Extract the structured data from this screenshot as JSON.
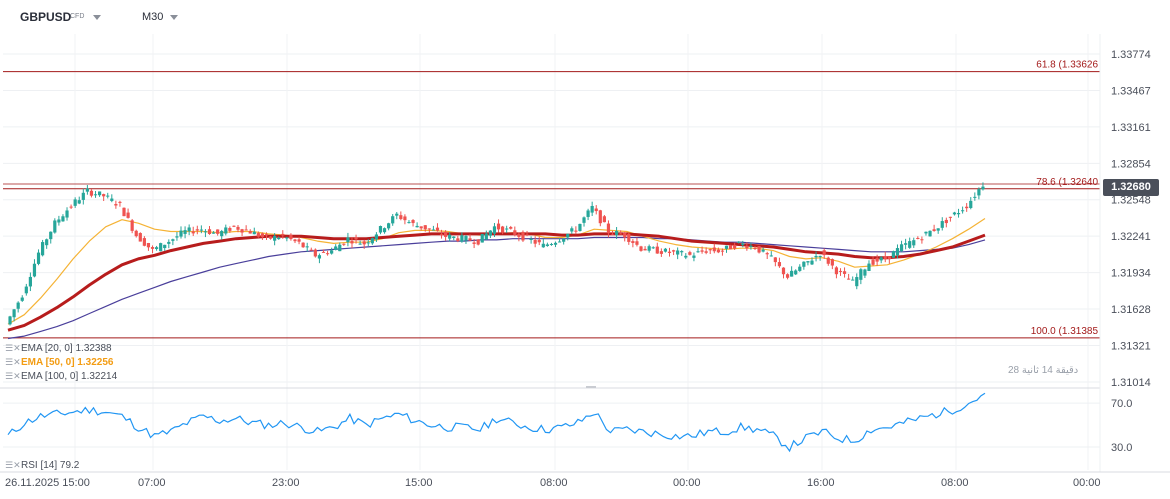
{
  "toolbar": {
    "symbol": "GBPUSD",
    "instrument_type": "CFD",
    "timeframe": "M30"
  },
  "colors": {
    "up_candle": "#26a69a",
    "down_candle": "#ef5350",
    "ema20": "#f5b335",
    "ema50": "#b71c1c",
    "ema100": "#4a3f9b",
    "fib_line": "#a31a1a",
    "rsi_line": "#2196f3",
    "badge": "#4a4f5a"
  },
  "legend": {
    "ema20": "EMA [20, 0]  1.32388",
    "ema50": "EMA [50, 0]  1.32256",
    "ema100": "EMA [100, 0]  1.32214",
    "rsi": "RSI [14]  79.2"
  },
  "countdown": {
    "minutes": "28",
    "mid": "14",
    "text": "دقيقة 14 ثانية 28"
  },
  "current_price": "1.32680",
  "fib_labels": {
    "f618": "61.8 (1.33626",
    "f786": "78.6 (1.32640",
    "f100": "100.0 (1.31385"
  },
  "chart_data": {
    "type": "candlestick",
    "symbol": "GBPUSD",
    "timeframe": "M30",
    "y_ticks": [
      "1.33774",
      "1.33467",
      "1.33161",
      "1.32854",
      "1.32548",
      "1.32241",
      "1.31934",
      "1.31628",
      "1.31321",
      "1.31014"
    ],
    "ylim": [
      1.31014,
      1.33774
    ],
    "x_ticks": [
      "26.11.2025  15:00",
      "07:00",
      "23:00",
      "15:00",
      "08:00",
      "00:00",
      "16:00",
      "08:00",
      "00:00"
    ],
    "fib_levels": [
      {
        "label": "61.8",
        "value": 1.33626
      },
      {
        "label": "78.6",
        "value": 1.3264
      },
      {
        "label": "100.0",
        "value": 1.31385
      }
    ],
    "last_price": 1.3268,
    "close_path": [
      1.315,
      1.3175,
      1.321,
      1.3235,
      1.325,
      1.3262,
      1.3258,
      1.325,
      1.3225,
      1.3212,
      1.322,
      1.3228,
      1.323,
      1.3226,
      1.3232,
      1.3228,
      1.3222,
      1.3224,
      1.3218,
      1.3208,
      1.3212,
      1.3222,
      1.3218,
      1.323,
      1.3242,
      1.3234,
      1.323,
      1.3224,
      1.3222,
      1.322,
      1.3232,
      1.3228,
      1.3222,
      1.3216,
      1.3222,
      1.323,
      1.3248,
      1.3228,
      1.3225,
      1.3214,
      1.3212,
      1.321,
      1.3208,
      1.3212,
      1.3212,
      1.3218,
      1.3215,
      1.3205,
      1.319,
      1.32,
      1.321,
      1.3195,
      1.3185,
      1.3202,
      1.3205,
      1.3215,
      1.3222,
      1.323,
      1.324,
      1.325,
      1.3268
    ],
    "ema20": [
      1.315,
      1.3158,
      1.3172,
      1.3188,
      1.3205,
      1.322,
      1.3232,
      1.3238,
      1.3235,
      1.323,
      1.3228,
      1.3228,
      1.3228,
      1.3227,
      1.3228,
      1.3228,
      1.3226,
      1.3225,
      1.3223,
      1.322,
      1.3218,
      1.3219,
      1.3219,
      1.3222,
      1.3227,
      1.3229,
      1.3229,
      1.3228,
      1.3226,
      1.3225,
      1.3226,
      1.3227,
      1.3226,
      1.3223,
      1.3223,
      1.3225,
      1.323,
      1.3229,
      1.3228,
      1.3224,
      1.322,
      1.3217,
      1.3215,
      1.3214,
      1.3213,
      1.3214,
      1.3214,
      1.3212,
      1.3207,
      1.3205,
      1.3206,
      1.3203,
      1.3198,
      1.3199,
      1.32,
      1.3204,
      1.3209,
      1.3215,
      1.3222,
      1.323,
      1.3239
    ],
    "ema50": [
      1.3145,
      1.3149,
      1.3156,
      1.3164,
      1.3173,
      1.3183,
      1.3192,
      1.32,
      1.3205,
      1.3208,
      1.3212,
      1.3215,
      1.3218,
      1.322,
      1.3222,
      1.3223,
      1.3224,
      1.3224,
      1.3224,
      1.3223,
      1.3222,
      1.3222,
      1.3222,
      1.3223,
      1.3224,
      1.3225,
      1.3226,
      1.3226,
      1.3226,
      1.3226,
      1.3226,
      1.3226,
      1.3226,
      1.3226,
      1.3225,
      1.3225,
      1.3226,
      1.3226,
      1.3226,
      1.3225,
      1.3224,
      1.3222,
      1.322,
      1.3219,
      1.3218,
      1.3217,
      1.3216,
      1.3215,
      1.3213,
      1.3211,
      1.321,
      1.3209,
      1.3207,
      1.3206,
      1.3206,
      1.3207,
      1.3209,
      1.3212,
      1.3215,
      1.322,
      1.3225
    ],
    "ema100": [
      1.3138,
      1.314,
      1.3144,
      1.3148,
      1.3153,
      1.3159,
      1.3165,
      1.3171,
      1.3176,
      1.3181,
      1.3186,
      1.319,
      1.3194,
      1.3198,
      1.3201,
      1.3204,
      1.3207,
      1.3209,
      1.3211,
      1.3212,
      1.3213,
      1.3214,
      1.3215,
      1.3216,
      1.3217,
      1.3218,
      1.3219,
      1.322,
      1.322,
      1.3221,
      1.3221,
      1.3222,
      1.3222,
      1.3222,
      1.3222,
      1.3222,
      1.3223,
      1.3223,
      1.3223,
      1.3223,
      1.3222,
      1.3222,
      1.3221,
      1.322,
      1.3219,
      1.3219,
      1.3218,
      1.3217,
      1.3216,
      1.3215,
      1.3214,
      1.3213,
      1.3212,
      1.3211,
      1.3211,
      1.3211,
      1.3212,
      1.3213,
      1.3214,
      1.3217,
      1.3221
    ],
    "rsi": {
      "ticks": [
        "70.0",
        "30.0"
      ],
      "last": 79.2,
      "series": [
        40,
        52,
        58,
        60,
        62,
        64,
        62,
        58,
        48,
        40,
        44,
        52,
        58,
        54,
        56,
        52,
        50,
        52,
        48,
        44,
        48,
        56,
        50,
        56,
        60,
        54,
        50,
        48,
        48,
        46,
        56,
        52,
        48,
        46,
        48,
        52,
        62,
        44,
        46,
        44,
        42,
        40,
        40,
        44,
        44,
        48,
        46,
        40,
        30,
        38,
        44,
        38,
        36,
        46,
        48,
        52,
        56,
        60,
        64,
        70,
        79
      ]
    }
  }
}
